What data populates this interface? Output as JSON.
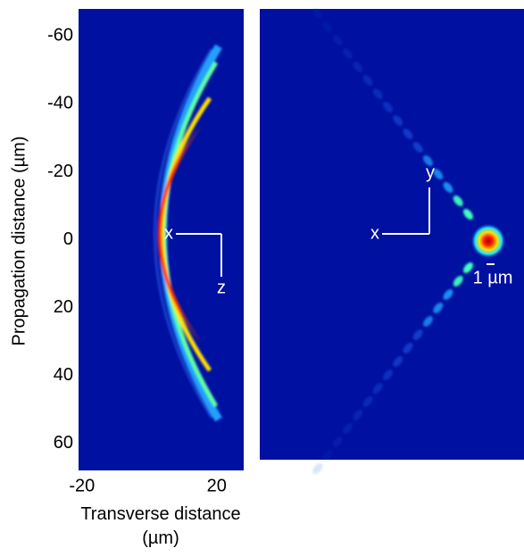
{
  "chart_data": [
    {
      "type": "heatmap",
      "xlabel": "Transverse distance (µm)",
      "ylabel": "Propagation distance (µm)",
      "xlim": [
        -21,
        28
      ],
      "xticks": [
        -20,
        20
      ],
      "ylim": [
        -68,
        68
      ],
      "yticks": [
        -60,
        -40,
        -20,
        0,
        20,
        40,
        60
      ],
      "y_inverted": true,
      "annotations": [
        "x",
        "z"
      ]
    },
    {
      "type": "heatmap",
      "annotations": [
        "x",
        "y",
        "1 µm"
      ]
    }
  ]
}
